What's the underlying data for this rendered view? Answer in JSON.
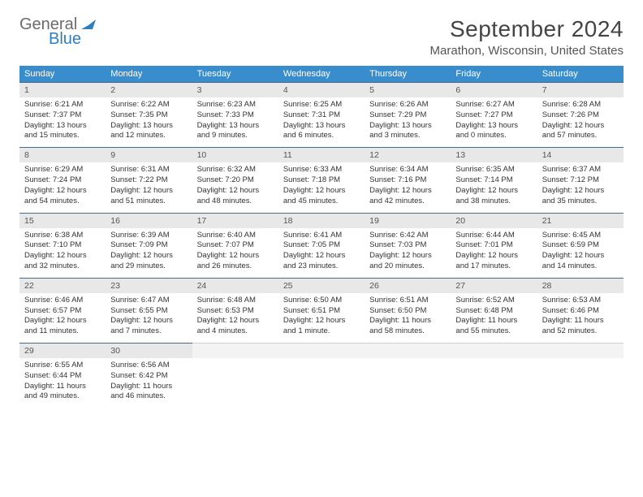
{
  "brand": {
    "general": "General",
    "blue": "Blue"
  },
  "title": "September 2024",
  "location": "Marathon, Wisconsin, United States",
  "colors": {
    "header_bg": "#3a8dcd",
    "header_text": "#ffffff",
    "daynum_bg": "#e8e8e8",
    "daynum_border": "#4a6a88",
    "text": "#333333",
    "page_bg": "#ffffff"
  },
  "day_names": [
    "Sunday",
    "Monday",
    "Tuesday",
    "Wednesday",
    "Thursday",
    "Friday",
    "Saturday"
  ],
  "days": [
    {
      "n": "1",
      "sr": "Sunrise: 6:21 AM",
      "ss": "Sunset: 7:37 PM",
      "dl1": "Daylight: 13 hours",
      "dl2": "and 15 minutes."
    },
    {
      "n": "2",
      "sr": "Sunrise: 6:22 AM",
      "ss": "Sunset: 7:35 PM",
      "dl1": "Daylight: 13 hours",
      "dl2": "and 12 minutes."
    },
    {
      "n": "3",
      "sr": "Sunrise: 6:23 AM",
      "ss": "Sunset: 7:33 PM",
      "dl1": "Daylight: 13 hours",
      "dl2": "and 9 minutes."
    },
    {
      "n": "4",
      "sr": "Sunrise: 6:25 AM",
      "ss": "Sunset: 7:31 PM",
      "dl1": "Daylight: 13 hours",
      "dl2": "and 6 minutes."
    },
    {
      "n": "5",
      "sr": "Sunrise: 6:26 AM",
      "ss": "Sunset: 7:29 PM",
      "dl1": "Daylight: 13 hours",
      "dl2": "and 3 minutes."
    },
    {
      "n": "6",
      "sr": "Sunrise: 6:27 AM",
      "ss": "Sunset: 7:27 PM",
      "dl1": "Daylight: 13 hours",
      "dl2": "and 0 minutes."
    },
    {
      "n": "7",
      "sr": "Sunrise: 6:28 AM",
      "ss": "Sunset: 7:26 PM",
      "dl1": "Daylight: 12 hours",
      "dl2": "and 57 minutes."
    },
    {
      "n": "8",
      "sr": "Sunrise: 6:29 AM",
      "ss": "Sunset: 7:24 PM",
      "dl1": "Daylight: 12 hours",
      "dl2": "and 54 minutes."
    },
    {
      "n": "9",
      "sr": "Sunrise: 6:31 AM",
      "ss": "Sunset: 7:22 PM",
      "dl1": "Daylight: 12 hours",
      "dl2": "and 51 minutes."
    },
    {
      "n": "10",
      "sr": "Sunrise: 6:32 AM",
      "ss": "Sunset: 7:20 PM",
      "dl1": "Daylight: 12 hours",
      "dl2": "and 48 minutes."
    },
    {
      "n": "11",
      "sr": "Sunrise: 6:33 AM",
      "ss": "Sunset: 7:18 PM",
      "dl1": "Daylight: 12 hours",
      "dl2": "and 45 minutes."
    },
    {
      "n": "12",
      "sr": "Sunrise: 6:34 AM",
      "ss": "Sunset: 7:16 PM",
      "dl1": "Daylight: 12 hours",
      "dl2": "and 42 minutes."
    },
    {
      "n": "13",
      "sr": "Sunrise: 6:35 AM",
      "ss": "Sunset: 7:14 PM",
      "dl1": "Daylight: 12 hours",
      "dl2": "and 38 minutes."
    },
    {
      "n": "14",
      "sr": "Sunrise: 6:37 AM",
      "ss": "Sunset: 7:12 PM",
      "dl1": "Daylight: 12 hours",
      "dl2": "and 35 minutes."
    },
    {
      "n": "15",
      "sr": "Sunrise: 6:38 AM",
      "ss": "Sunset: 7:10 PM",
      "dl1": "Daylight: 12 hours",
      "dl2": "and 32 minutes."
    },
    {
      "n": "16",
      "sr": "Sunrise: 6:39 AM",
      "ss": "Sunset: 7:09 PM",
      "dl1": "Daylight: 12 hours",
      "dl2": "and 29 minutes."
    },
    {
      "n": "17",
      "sr": "Sunrise: 6:40 AM",
      "ss": "Sunset: 7:07 PM",
      "dl1": "Daylight: 12 hours",
      "dl2": "and 26 minutes."
    },
    {
      "n": "18",
      "sr": "Sunrise: 6:41 AM",
      "ss": "Sunset: 7:05 PM",
      "dl1": "Daylight: 12 hours",
      "dl2": "and 23 minutes."
    },
    {
      "n": "19",
      "sr": "Sunrise: 6:42 AM",
      "ss": "Sunset: 7:03 PM",
      "dl1": "Daylight: 12 hours",
      "dl2": "and 20 minutes."
    },
    {
      "n": "20",
      "sr": "Sunrise: 6:44 AM",
      "ss": "Sunset: 7:01 PM",
      "dl1": "Daylight: 12 hours",
      "dl2": "and 17 minutes."
    },
    {
      "n": "21",
      "sr": "Sunrise: 6:45 AM",
      "ss": "Sunset: 6:59 PM",
      "dl1": "Daylight: 12 hours",
      "dl2": "and 14 minutes."
    },
    {
      "n": "22",
      "sr": "Sunrise: 6:46 AM",
      "ss": "Sunset: 6:57 PM",
      "dl1": "Daylight: 12 hours",
      "dl2": "and 11 minutes."
    },
    {
      "n": "23",
      "sr": "Sunrise: 6:47 AM",
      "ss": "Sunset: 6:55 PM",
      "dl1": "Daylight: 12 hours",
      "dl2": "and 7 minutes."
    },
    {
      "n": "24",
      "sr": "Sunrise: 6:48 AM",
      "ss": "Sunset: 6:53 PM",
      "dl1": "Daylight: 12 hours",
      "dl2": "and 4 minutes."
    },
    {
      "n": "25",
      "sr": "Sunrise: 6:50 AM",
      "ss": "Sunset: 6:51 PM",
      "dl1": "Daylight: 12 hours",
      "dl2": "and 1 minute."
    },
    {
      "n": "26",
      "sr": "Sunrise: 6:51 AM",
      "ss": "Sunset: 6:50 PM",
      "dl1": "Daylight: 11 hours",
      "dl2": "and 58 minutes."
    },
    {
      "n": "27",
      "sr": "Sunrise: 6:52 AM",
      "ss": "Sunset: 6:48 PM",
      "dl1": "Daylight: 11 hours",
      "dl2": "and 55 minutes."
    },
    {
      "n": "28",
      "sr": "Sunrise: 6:53 AM",
      "ss": "Sunset: 6:46 PM",
      "dl1": "Daylight: 11 hours",
      "dl2": "and 52 minutes."
    },
    {
      "n": "29",
      "sr": "Sunrise: 6:55 AM",
      "ss": "Sunset: 6:44 PM",
      "dl1": "Daylight: 11 hours",
      "dl2": "and 49 minutes."
    },
    {
      "n": "30",
      "sr": "Sunrise: 6:56 AM",
      "ss": "Sunset: 6:42 PM",
      "dl1": "Daylight: 11 hours",
      "dl2": "and 46 minutes."
    }
  ]
}
